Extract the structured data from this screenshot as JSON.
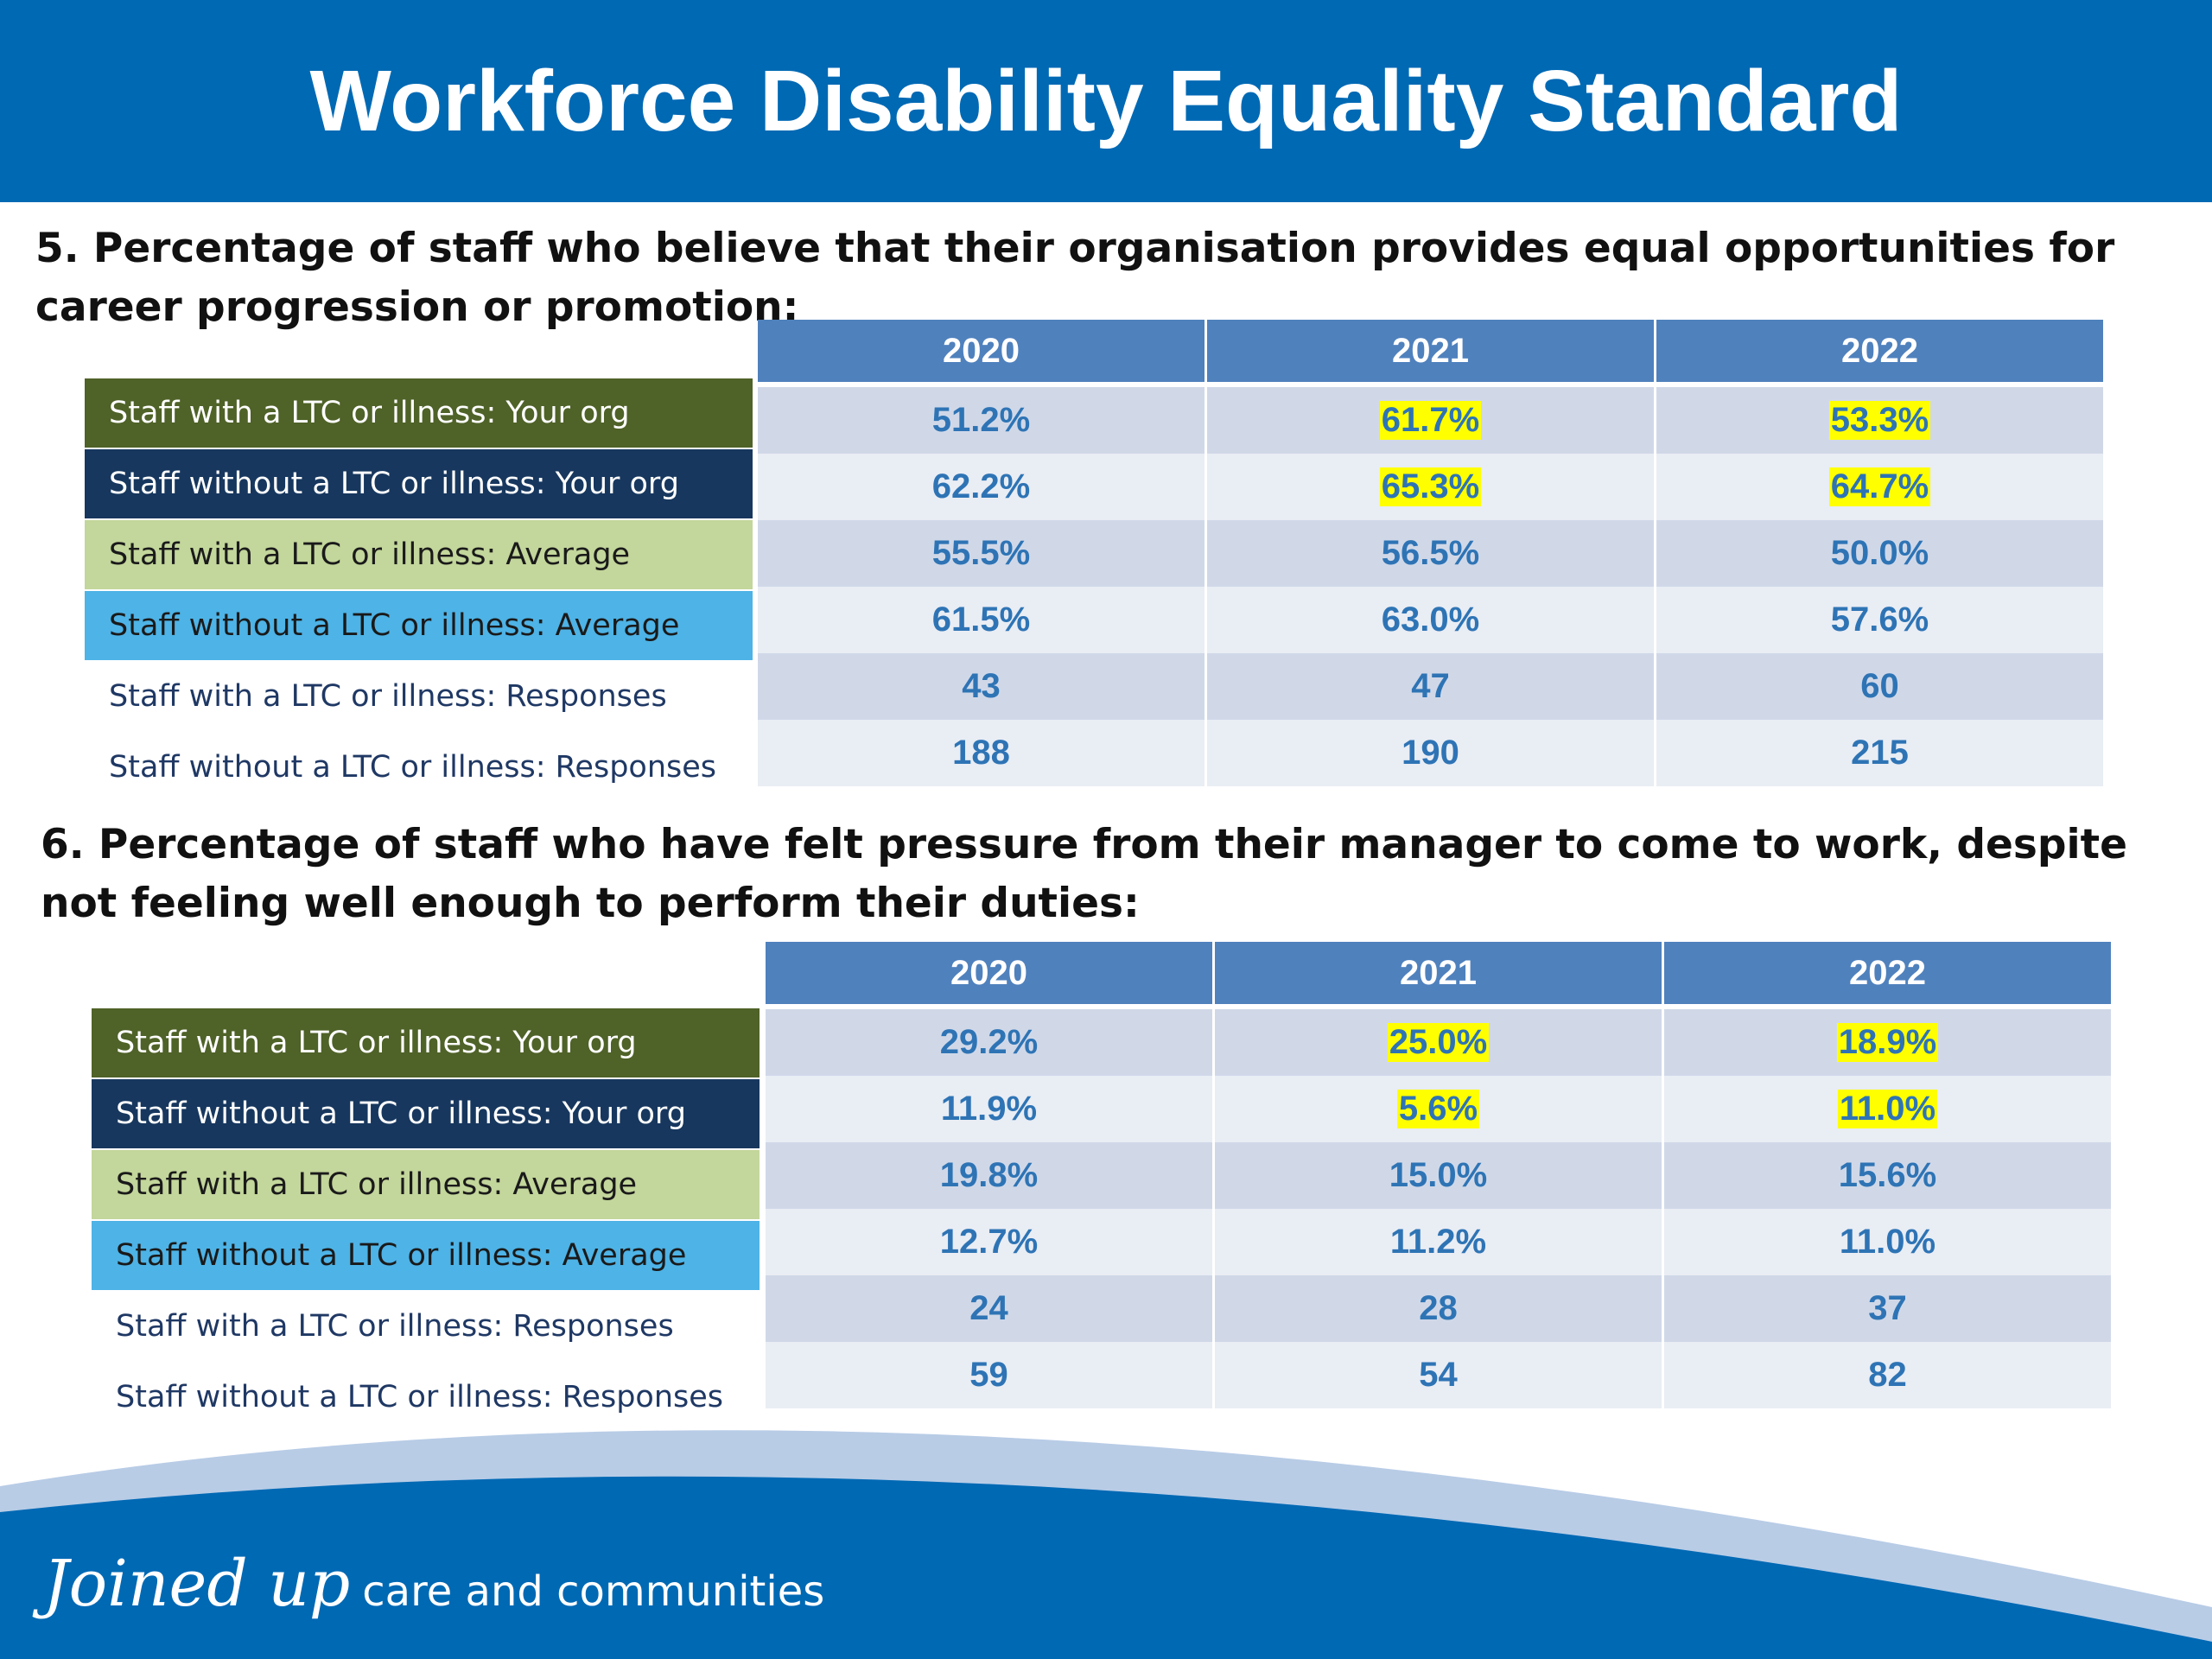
{
  "title": "Workforce Disability Equality Standard",
  "colors": {
    "header": "#0069b4",
    "with_ltc_your_org": "#4f6228",
    "without_ltc_your_org": "#17375e",
    "with_ltc_average": "#c3d69b",
    "without_ltc_average": "#4eb3e6",
    "table_header": "#4f81bd",
    "value_text": "#2e74b5",
    "highlight": "#ffff00"
  },
  "q5": {
    "question": "5. Percentage of staff who believe that their organisation provides equal opportunities for career progression or promotion:",
    "years": [
      "2020",
      "2021",
      "2022"
    ],
    "rows": [
      {
        "label": "Staff with a LTC or illness: Your org",
        "values": [
          "51.2%",
          "61.7%",
          "53.3%"
        ],
        "highlighted": [
          false,
          true,
          true
        ]
      },
      {
        "label": "Staff without a LTC or illness: Your org",
        "values": [
          "62.2%",
          "65.3%",
          "64.7%"
        ],
        "highlighted": [
          false,
          true,
          true
        ]
      },
      {
        "label": "Staff with a LTC or illness: Average",
        "values": [
          "55.5%",
          "56.5%",
          "50.0%"
        ],
        "highlighted": [
          false,
          false,
          false
        ]
      },
      {
        "label": "Staff without a LTC or illness: Average",
        "values": [
          "61.5%",
          "63.0%",
          "57.6%"
        ],
        "highlighted": [
          false,
          false,
          false
        ]
      },
      {
        "label": "Staff with a LTC or illness: Responses",
        "values": [
          "43",
          "47",
          "60"
        ],
        "highlighted": [
          false,
          false,
          false
        ]
      },
      {
        "label": "Staff without a LTC or illness: Responses",
        "values": [
          "188",
          "190",
          "215"
        ],
        "highlighted": [
          false,
          false,
          false
        ]
      }
    ]
  },
  "q6": {
    "question": "6. Percentage of staff who have felt pressure from their manager to come to work, despite not feeling well enough to perform their duties:",
    "years": [
      "2020",
      "2021",
      "2022"
    ],
    "rows": [
      {
        "label": "Staff with a LTC or illness: Your org",
        "values": [
          "29.2%",
          "25.0%",
          "18.9%"
        ],
        "highlighted": [
          false,
          true,
          true
        ]
      },
      {
        "label": "Staff without a LTC or illness: Your org",
        "values": [
          "11.9%",
          "5.6%",
          "11.0%"
        ],
        "highlighted": [
          false,
          true,
          true
        ]
      },
      {
        "label": "Staff with a LTC or illness: Average",
        "values": [
          "19.8%",
          "15.0%",
          "15.6%"
        ],
        "highlighted": [
          false,
          false,
          false
        ]
      },
      {
        "label": "Staff without a LTC or illness: Average",
        "values": [
          "12.7%",
          "11.2%",
          "11.0%"
        ],
        "highlighted": [
          false,
          false,
          false
        ]
      },
      {
        "label": "Staff with a LTC or illness: Responses",
        "values": [
          "24",
          "28",
          "37"
        ],
        "highlighted": [
          false,
          false,
          false
        ]
      },
      {
        "label": "Staff without a LTC or illness: Responses",
        "values": [
          "59",
          "54",
          "82"
        ],
        "highlighted": [
          false,
          false,
          false
        ]
      }
    ]
  },
  "footer": {
    "tagline_script": "Joined up",
    "tagline_rest": "care and communities"
  }
}
